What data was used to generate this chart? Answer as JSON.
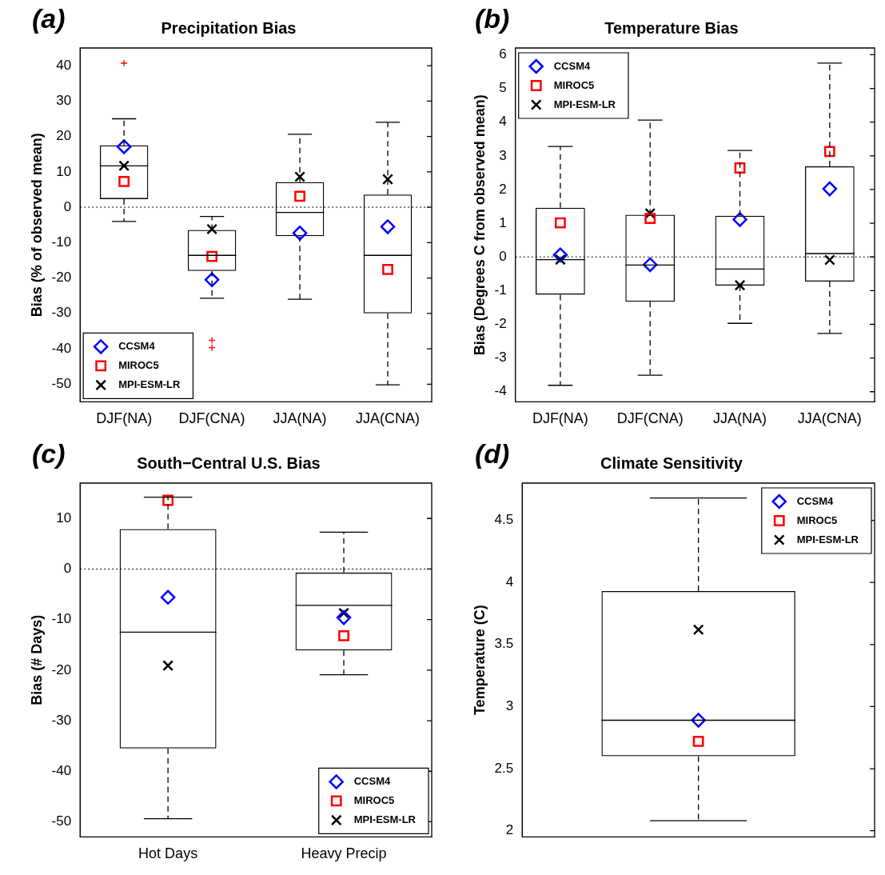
{
  "chart_data": [
    {
      "type": "box",
      "title": "Precipitation Bias",
      "ylabel": "Bias (% of observed mean)",
      "annotations": [
        "(a)"
      ],
      "categories": [
        "DJF(NA)",
        "DJF(CNA)",
        "JJA(NA)",
        "JJA(CNA)"
      ],
      "boxes": [
        {
          "low": -4,
          "q1": 2.3,
          "median": 11.7,
          "q3": 17.5,
          "high": 25,
          "outliers": [
            40.7
          ]
        },
        {
          "low": -25.7,
          "q1": -18,
          "median": -13.6,
          "q3": -6.4,
          "high": -2.6,
          "outliers": [
            -37.6,
            -39.7
          ]
        },
        {
          "low": -26,
          "q1": -8.2,
          "median": -1.5,
          "q3": 7.1,
          "high": 20.6
        },
        {
          "low": -50.2,
          "q1": -30,
          "median": -13.6,
          "q3": 3.6,
          "high": 24
        }
      ],
      "series": [
        {
          "type": "scatter",
          "name": "CCSM4",
          "color": "#0000ff",
          "marker": "diamond",
          "x": [
            "DJF(NA)",
            "DJF(CNA)",
            "JJA(NA)",
            "JJA(CNA)"
          ],
          "values": [
            17.1,
            -20.5,
            -7.3,
            -5.5
          ]
        },
        {
          "type": "scatter",
          "name": "MIROC5",
          "color": "#ff0000",
          "marker": "square",
          "x": [
            "DJF(NA)",
            "DJF(CNA)",
            "JJA(NA)",
            "JJA(CNA)"
          ],
          "values": [
            7.3,
            -13.9,
            3.1,
            -17.6
          ]
        },
        {
          "type": "scatter",
          "name": "MPI-ESM-LR",
          "color": "#000000",
          "marker": "cross",
          "x": [
            "DJF(NA)",
            "DJF(CNA)",
            "JJA(NA)",
            "JJA(CNA)"
          ],
          "values": [
            11.7,
            -6.2,
            8.6,
            7.9
          ]
        }
      ],
      "ylim": [
        -55,
        45
      ],
      "yticks": [
        -50,
        -40,
        -30,
        -20,
        -10,
        0,
        10,
        20,
        30,
        40
      ],
      "ref_lines": [
        {
          "axis": "y",
          "value": 0,
          "line_style": "dotted"
        }
      ],
      "legend": "bottom left",
      "grid": false
    },
    {
      "type": "box",
      "title": "Temperature Bias",
      "ylabel": "Bias (Degrees C from observed mean)",
      "annotations": [
        "(b)"
      ],
      "categories": [
        "DJF(NA)",
        "DJF(CNA)",
        "JJA(NA)",
        "JJA(CNA)"
      ],
      "boxes": [
        {
          "low": -3.81,
          "q1": -1.12,
          "median": -0.08,
          "q3": 1.46,
          "high": 3.28
        },
        {
          "low": -3.51,
          "q1": -1.33,
          "median": -0.24,
          "q3": 1.25,
          "high": 4.06
        },
        {
          "low": -1.97,
          "q1": -0.85,
          "median": -0.36,
          "q3": 1.22,
          "high": 3.16
        },
        {
          "low": -2.27,
          "q1": -0.73,
          "median": 0.1,
          "q3": 2.69,
          "high": 5.75
        }
      ],
      "series": [
        {
          "type": "scatter",
          "name": "CCSM4",
          "color": "#0000ff",
          "marker": "diamond",
          "x": [
            "DJF(NA)",
            "DJF(CNA)",
            "JJA(NA)",
            "JJA(CNA)"
          ],
          "values": [
            0.06,
            -0.23,
            1.11,
            2.02
          ]
        },
        {
          "type": "scatter",
          "name": "MIROC5",
          "color": "#ff0000",
          "marker": "square",
          "x": [
            "DJF(NA)",
            "DJF(CNA)",
            "JJA(NA)",
            "JJA(CNA)"
          ],
          "values": [
            1.01,
            1.14,
            2.64,
            3.13
          ]
        },
        {
          "type": "scatter",
          "name": "MPI-ESM-LR",
          "color": "#000000",
          "marker": "cross",
          "x": [
            "DJF(NA)",
            "DJF(CNA)",
            "JJA(NA)",
            "JJA(CNA)"
          ],
          "values": [
            -0.08,
            1.29,
            -0.84,
            -0.09
          ]
        }
      ],
      "ylim": [
        -4.3,
        6.2
      ],
      "yticks": [
        -4,
        -3,
        -2,
        -1,
        0,
        1,
        2,
        3,
        4,
        5,
        6
      ],
      "ref_lines": [
        {
          "axis": "y",
          "value": 0,
          "line_style": "dotted"
        }
      ],
      "legend": "top left",
      "grid": false
    },
    {
      "type": "box",
      "title": "South−Central U.S. Bias",
      "ylabel": "Bias (# Days)",
      "annotations": [
        "(c)"
      ],
      "categories": [
        "Hot Days",
        "Heavy Precip"
      ],
      "boxes": [
        {
          "low": -49.4,
          "q1": -35.5,
          "median": -12.5,
          "q3": 7.9,
          "high": 14.2
        },
        {
          "low": -20.9,
          "q1": -16.1,
          "median": -7.2,
          "q3": -0.7,
          "high": 7.3
        }
      ],
      "series": [
        {
          "type": "scatter",
          "name": "CCSM4",
          "color": "#0000ff",
          "marker": "diamond",
          "x": [
            "Hot Days",
            "Heavy Precip"
          ],
          "values": [
            -5.6,
            -9.6
          ]
        },
        {
          "type": "scatter",
          "name": "MIROC5",
          "color": "#ff0000",
          "marker": "square",
          "x": [
            "Hot Days",
            "Heavy Precip"
          ],
          "values": [
            13.6,
            -13.2
          ]
        },
        {
          "type": "scatter",
          "name": "MPI-ESM-LR",
          "color": "#000000",
          "marker": "cross",
          "x": [
            "Hot Days",
            "Heavy Precip"
          ],
          "values": [
            -19.1,
            -8.7
          ]
        }
      ],
      "ylim": [
        -53,
        17
      ],
      "yticks": [
        -50,
        -40,
        -30,
        -20,
        -10,
        0,
        10
      ],
      "ref_lines": [
        {
          "axis": "y",
          "value": 0,
          "line_style": "dotted"
        }
      ],
      "legend": "bottom right",
      "grid": false
    },
    {
      "type": "box",
      "title": "Climate Sensitivity",
      "ylabel": "Temperature (C)",
      "annotations": [
        "(d)"
      ],
      "categories": [
        null
      ],
      "boxes": [
        {
          "low": 2.08,
          "q1": 2.6,
          "median": 2.89,
          "q3": 3.93,
          "high": 4.68
        }
      ],
      "series": [
        {
          "type": "scatter",
          "name": "CCSM4",
          "color": "#0000ff",
          "marker": "diamond",
          "values": [
            2.89
          ]
        },
        {
          "type": "scatter",
          "name": "MIROC5",
          "color": "#ff0000",
          "marker": "square",
          "values": [
            2.72
          ]
        },
        {
          "type": "scatter",
          "name": "MPI-ESM-LR",
          "color": "#000000",
          "marker": "cross",
          "values": [
            3.62
          ]
        }
      ],
      "ylim": [
        1.95,
        4.8
      ],
      "yticks": [
        2,
        2.5,
        3,
        3.5,
        4,
        4.5
      ],
      "legend": "top right",
      "grid": false
    }
  ]
}
